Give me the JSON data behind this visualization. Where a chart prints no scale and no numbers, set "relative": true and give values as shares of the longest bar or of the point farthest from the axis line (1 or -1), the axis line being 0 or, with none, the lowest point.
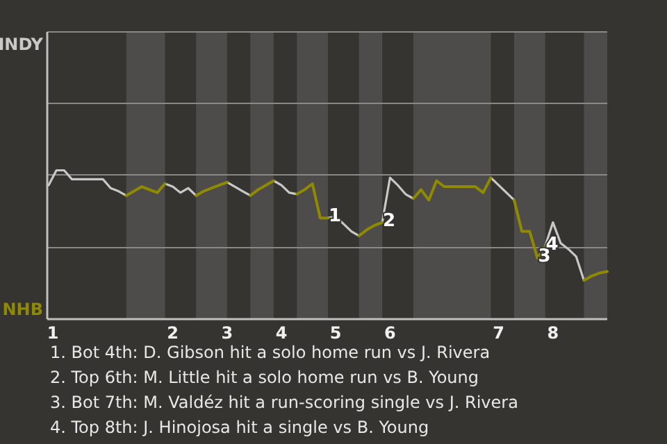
{
  "chart_data": {
    "type": "line",
    "relative": true,
    "categories": [
      "1",
      null,
      null,
      null,
      null,
      null,
      null,
      null,
      null,
      null,
      null,
      null,
      null,
      null,
      null,
      null,
      "2",
      null,
      null,
      null,
      null,
      null,
      null,
      "3",
      null,
      null,
      null,
      null,
      null,
      null,
      "4",
      null,
      null,
      null,
      null,
      null,
      null,
      "5",
      null,
      null,
      null,
      null,
      null,
      null,
      "6",
      null,
      null,
      null,
      null,
      null,
      null,
      null,
      null,
      null,
      null,
      null,
      null,
      null,
      "7",
      null,
      null,
      null,
      null,
      null,
      null,
      "8",
      null,
      null,
      null,
      null,
      null,
      null,
      null
    ],
    "legend": "left",
    "marker": "none",
    "line_style": "solid",
    "ref_lines": [
      {
        "axis": "y",
        "value": 0.48,
        "color": "#8a8986"
      },
      {
        "axis": "y",
        "value": 0.97,
        "color": "#8a8986"
      },
      {
        "axis": "y",
        "value": 1.45,
        "color": "#8a8986"
      },
      {
        "axis": "y",
        "value": 1.93,
        "color": "#8a8986"
      }
    ],
    "series": [
      {
        "name": "INDY",
        "color": "#c8c8c8",
        "values": [
          0.9,
          1,
          1,
          0.94,
          0.94,
          0.94,
          0.94,
          0.94,
          0.88,
          0.86,
          0.83,
          null,
          null,
          null,
          null,
          0.91,
          0.89,
          0.85,
          0.88,
          0.83,
          null,
          null,
          null,
          0.92,
          0.89,
          0.86,
          0.83,
          null,
          null,
          0.93,
          0.9,
          0.85,
          0.84,
          null,
          null,
          null,
          0.68,
          0.69,
          0.64,
          0.59,
          0.56,
          null,
          null,
          0.65,
          0.95,
          0.9,
          0.84,
          0.81,
          null,
          null,
          null,
          null,
          null,
          null,
          null,
          null,
          null,
          0.95,
          0.9,
          0.85,
          0.8,
          null,
          null,
          null,
          0.49,
          0.65,
          0.51,
          0.47,
          0.42,
          0.26,
          null,
          null,
          null
        ]
      },
      {
        "name": "NHB",
        "color": "#8f8a00",
        "values": [
          null,
          null,
          null,
          null,
          null,
          null,
          null,
          null,
          null,
          null,
          0.83,
          0.86,
          0.89,
          0.87,
          0.85,
          0.91,
          null,
          null,
          null,
          0.83,
          0.86,
          0.88,
          0.9,
          0.92,
          null,
          null,
          0.83,
          0.87,
          0.9,
          0.93,
          null,
          null,
          0.84,
          0.87,
          0.91,
          0.68,
          0.68,
          null,
          null,
          null,
          0.56,
          0.6,
          0.63,
          0.65,
          null,
          null,
          null,
          0.81,
          0.87,
          0.8,
          0.93,
          0.89,
          0.89,
          0.89,
          0.89,
          0.89,
          0.85,
          0.95,
          null,
          null,
          0.8,
          0.59,
          0.59,
          0.41,
          0.49,
          null,
          null,
          null,
          null,
          0.26,
          0.29,
          0.31,
          0.32
        ]
      }
    ],
    "annotations": [
      {
        "text": "1",
        "y": 0.68
      },
      {
        "text": "2",
        "y": 0.65
      },
      {
        "text": "3",
        "y": 0.41
      },
      {
        "text": "4",
        "y": 0.49
      },
      "1. Bot 4th: D. Gibson hit a solo home run vs J. Rivera",
      "2. Top 6th: M. Little hit a solo home run vs B. Young",
      "3. Bot 7th: M. Valdéz hit a run-scoring single vs J. Rivera",
      "4. Top 8th: J. Hinojosa hit a single vs B. Young"
    ]
  }
}
